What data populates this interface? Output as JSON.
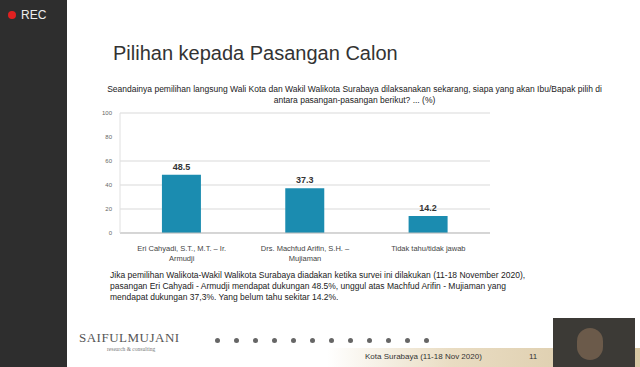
{
  "chart_data": {
    "type": "bar",
    "title": "Seandainya pemilihan langsung Wali Kota dan Wakil Walikota Surabaya dilaksanakan sekarang, siapa yang akan Ibu/Bapak pilih di antara pasangan-pasangan  berikut? ... (%)",
    "categories": [
      "Eri Cahyadi, S.T., M.T. – Ir. Armudji",
      "Drs. Machfud Arifin, S.H. – Mujiaman",
      "Tidak tahu/tidak jawab"
    ],
    "values": [
      48.5,
      37.3,
      14.2
    ],
    "color": "#1b8cb0",
    "ylim": [
      0,
      100
    ],
    "yticks": [
      0,
      20,
      40,
      60,
      80,
      100
    ],
    "grid": true,
    "data_labels": true
  },
  "slide": {
    "recording": "REC",
    "heading": "Pilihan kepada Pasangan Calon",
    "summary": "Jika pemilihan Walikota-Wakil Walikota Surabaya diadakan ketika survei ini dilakukan (11-18 November 2020), pasangan Eri Cahyadi - Armudji mendapat dukungan 48.5%, unggul atas Machfud Arifin - Mujiaman yang mendapat dukungan 37,3%. Yang belum tahu sekitar 14.2%.",
    "logo": "SAIFULMUJANI",
    "logo_tagline": "research & consulting",
    "footer": "Kota Surabaya (11-18 Nov 2020)",
    "page": "11"
  }
}
